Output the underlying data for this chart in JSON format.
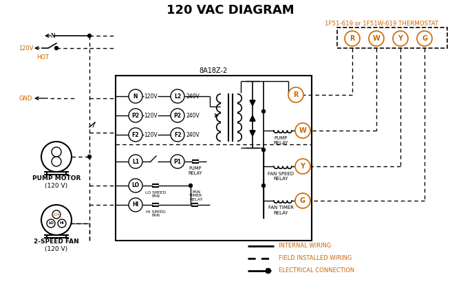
{
  "title": "120 VAC DIAGRAM",
  "title_fontsize": 13,
  "title_fontweight": "bold",
  "bg_color": "#ffffff",
  "line_color": "#000000",
  "orange_color": "#cc6600",
  "thermostat_label": "1F51-619 or 1F51W-619 THERMOSTAT",
  "control_box_label": "8A18Z-2",
  "figw": 6.7,
  "figh": 4.19,
  "dpi": 100
}
